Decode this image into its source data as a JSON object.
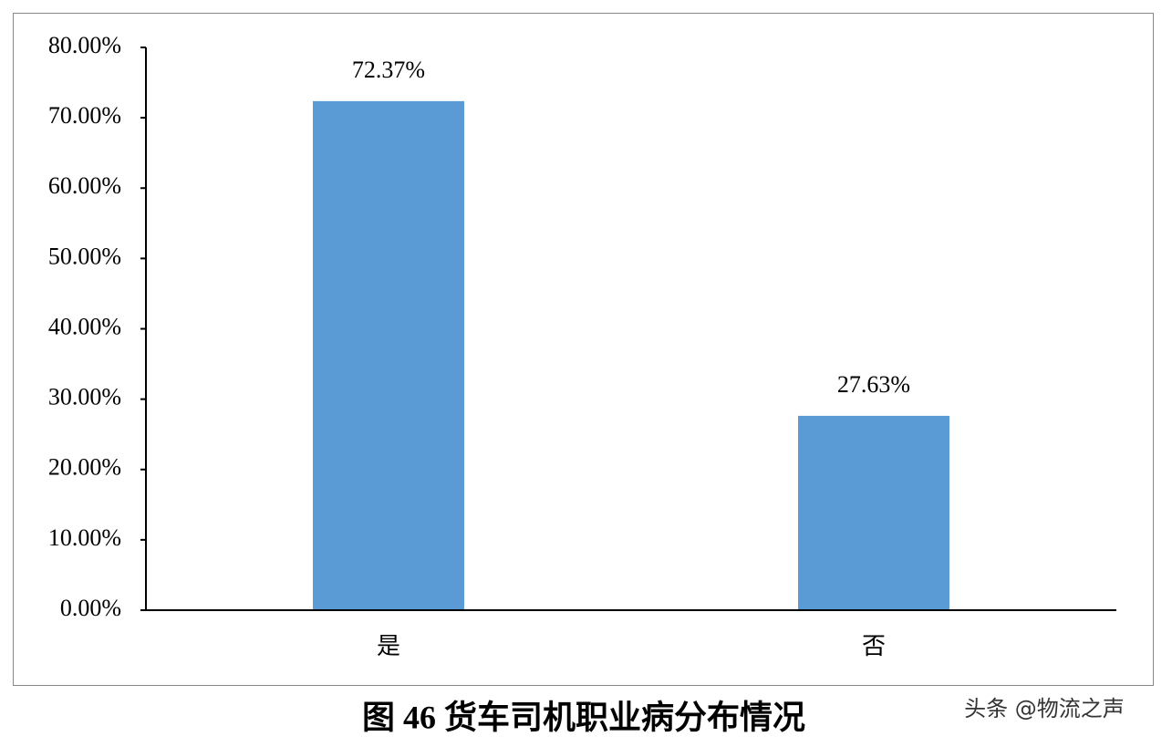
{
  "chart_data": {
    "type": "bar",
    "caption": "图 46  货车司机职业病分布情况",
    "watermark": "头条 @物流之声",
    "categories": [
      "是",
      "否"
    ],
    "values": [
      72.37,
      27.63
    ],
    "value_labels": [
      "72.37%",
      "27.63%"
    ],
    "color": "#5b9bd5",
    "ylim": [
      0,
      80
    ],
    "yticks": [
      {
        "value": 0,
        "label": "0.00%"
      },
      {
        "value": 10,
        "label": "10.00%"
      },
      {
        "value": 20,
        "label": "20.00%"
      },
      {
        "value": 30,
        "label": "30.00%"
      },
      {
        "value": 40,
        "label": "40.00%"
      },
      {
        "value": 50,
        "label": "50.00%"
      },
      {
        "value": 60,
        "label": "60.00%"
      },
      {
        "value": 70,
        "label": "70.00%"
      },
      {
        "value": 80,
        "label": "80.00%"
      }
    ],
    "grid": false
  }
}
